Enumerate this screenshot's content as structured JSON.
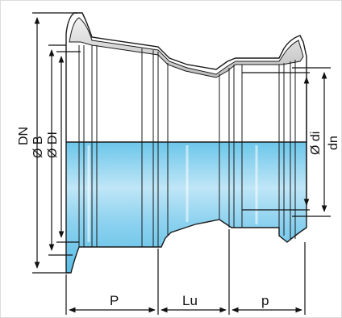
{
  "labels": {
    "dn_upper": "DN",
    "dia_b": "Ø B",
    "dia_di_left": "Ø DI",
    "dia_di_right": "Ø di",
    "dn_lower": "dn",
    "p_upper": "P",
    "lu": "Lu",
    "p_lower": "p"
  },
  "colors": {
    "water": "#7fcdec",
    "water_light": "#d6f0fb",
    "pipe_grey": "#d9d9d9",
    "line": "#1a1a1a"
  }
}
